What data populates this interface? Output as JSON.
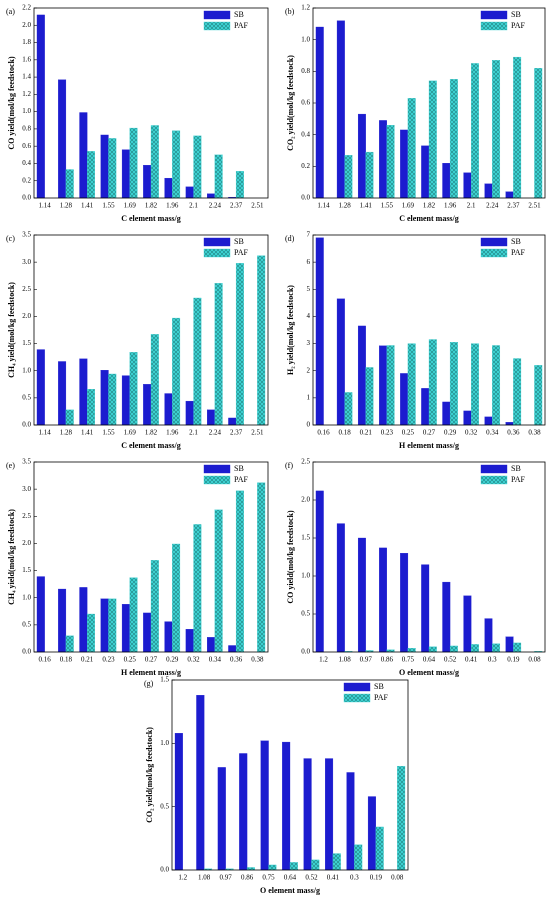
{
  "chart_data": [
    {
      "type": "bar",
      "panel_label": "(a)",
      "categories": [
        "1.14",
        "1.28",
        "1.41",
        "1.55",
        "1.69",
        "1.82",
        "1.96",
        "2.1",
        "2.24",
        "2.37",
        "2.51"
      ],
      "series": [
        {
          "name": "SB",
          "color": "#1c1ccf",
          "values": [
            2.12,
            1.37,
            0.99,
            0.73,
            0.56,
            0.38,
            0.23,
            0.13,
            0.05,
            0.01,
            null
          ]
        },
        {
          "name": "PAF",
          "color": "#3ccfcf",
          "values": [
            null,
            0.33,
            0.54,
            0.69,
            0.81,
            0.84,
            0.78,
            0.72,
            0.5,
            0.31,
            null
          ]
        }
      ],
      "ylim": [
        0,
        2.2
      ],
      "yticks": [
        {
          "value": 0,
          "label": "0.0"
        },
        {
          "value": 0.2,
          "label": "0.2"
        },
        {
          "value": 0.4,
          "label": "0.4"
        },
        {
          "value": 0.6,
          "label": "0.6"
        },
        {
          "value": 0.8,
          "label": "0.8"
        },
        {
          "value": 1,
          "label": "1.0"
        },
        {
          "value": 1.2,
          "label": "1.2"
        },
        {
          "value": 1.4,
          "label": "1.4"
        },
        {
          "value": 1.6,
          "label": "1.6"
        },
        {
          "value": 1.8,
          "label": "1.8"
        },
        {
          "value": 2,
          "label": "2.0"
        },
        {
          "value": 2.2,
          "label": "2.2"
        }
      ],
      "xlabel": "C element mass/g",
      "ylabel": "CO yield(mol/kg feedstock)"
    },
    {
      "type": "bar",
      "panel_label": "(b)",
      "categories": [
        "1.14",
        "1.28",
        "1.41",
        "1.55",
        "1.69",
        "1.82",
        "1.96",
        "2.1",
        "2.24",
        "2.37",
        "2.51"
      ],
      "series": [
        {
          "name": "SB",
          "color": "#1c1ccf",
          "values": [
            1.08,
            1.12,
            0.53,
            0.49,
            0.43,
            0.33,
            0.22,
            0.16,
            0.09,
            0.04,
            null
          ]
        },
        {
          "name": "PAF",
          "color": "#3ccfcf",
          "values": [
            null,
            0.27,
            0.29,
            0.46,
            0.63,
            0.74,
            0.75,
            0.85,
            0.87,
            0.89,
            0.82
          ]
        }
      ],
      "ylim": [
        0,
        1.2
      ],
      "yticks": [
        {
          "value": 0,
          "label": "0.0"
        },
        {
          "value": 0.2,
          "label": "0.2"
        },
        {
          "value": 0.4,
          "label": "0.4"
        },
        {
          "value": 0.6,
          "label": "0.6"
        },
        {
          "value": 0.8,
          "label": "0.8"
        },
        {
          "value": 1,
          "label": "1.0"
        },
        {
          "value": 1.2,
          "label": "1.2"
        }
      ],
      "xlabel": "C element mass/g",
      "ylabel": "CO₂ yield(mol/kg feedstock)"
    },
    {
      "type": "bar",
      "panel_label": "(c)",
      "categories": [
        "1.14",
        "1.28",
        "1.41",
        "1.55",
        "1.69",
        "1.82",
        "1.96",
        "2.1",
        "2.24",
        "2.37",
        "2.51"
      ],
      "series": [
        {
          "name": "SB",
          "color": "#1c1ccf",
          "values": [
            1.39,
            1.17,
            1.22,
            1.01,
            0.91,
            0.75,
            0.58,
            0.44,
            0.28,
            0.13,
            null
          ]
        },
        {
          "name": "PAF",
          "color": "#3ccfcf",
          "values": [
            null,
            0.28,
            0.66,
            0.94,
            1.34,
            1.67,
            1.97,
            2.34,
            2.61,
            2.98,
            3.12
          ]
        }
      ],
      "ylim": [
        0,
        3.5
      ],
      "yticks": [
        {
          "value": 0,
          "label": "0.0"
        },
        {
          "value": 0.5,
          "label": "0.5"
        },
        {
          "value": 1,
          "label": "1.0"
        },
        {
          "value": 1.5,
          "label": "1.5"
        },
        {
          "value": 2,
          "label": "2.0"
        },
        {
          "value": 2.5,
          "label": "2.5"
        },
        {
          "value": 3,
          "label": "3.0"
        },
        {
          "value": 3.5,
          "label": "3.5"
        }
      ],
      "xlabel": "C element mass/g",
      "ylabel": "CH₄ yield(mol/kg feedstock)"
    },
    {
      "type": "bar",
      "panel_label": "(d)",
      "categories": [
        "0.16",
        "0.18",
        "0.21",
        "0.23",
        "0.25",
        "0.27",
        "0.29",
        "0.32",
        "0.34",
        "0.36",
        "0.38"
      ],
      "series": [
        {
          "name": "SB",
          "color": "#1c1ccf",
          "values": [
            6.9,
            4.65,
            3.65,
            2.92,
            1.9,
            1.35,
            0.85,
            0.52,
            0.3,
            0.1,
            null
          ]
        },
        {
          "name": "PAF",
          "color": "#3ccfcf",
          "values": [
            null,
            1.2,
            2.12,
            2.93,
            3.0,
            3.15,
            3.05,
            3.0,
            2.93,
            2.45,
            2.2
          ]
        }
      ],
      "ylim": [
        0,
        7
      ],
      "yticks": [
        0,
        1,
        2,
        3,
        4,
        5,
        6,
        7
      ],
      "xlabel": "H element mass/g",
      "ylabel": "H₂ yield(mol/kg feedstock)"
    },
    {
      "type": "bar",
      "panel_label": "(e)",
      "categories": [
        "0.16",
        "0.18",
        "0.21",
        "0.23",
        "0.25",
        "0.27",
        "0.29",
        "0.32",
        "0.34",
        "0.36",
        "0.38"
      ],
      "series": [
        {
          "name": "SB",
          "color": "#1c1ccf",
          "values": [
            1.39,
            1.16,
            1.19,
            0.98,
            0.88,
            0.72,
            0.56,
            0.42,
            0.27,
            0.12,
            null
          ]
        },
        {
          "name": "PAF",
          "color": "#3ccfcf",
          "values": [
            null,
            0.3,
            0.7,
            0.98,
            1.37,
            1.69,
            1.99,
            2.35,
            2.62,
            2.97,
            3.12
          ]
        }
      ],
      "ylim": [
        0,
        3.5
      ],
      "yticks": [
        {
          "value": 0,
          "label": "0.0"
        },
        {
          "value": 0.5,
          "label": "0.5"
        },
        {
          "value": 1,
          "label": "1.0"
        },
        {
          "value": 1.5,
          "label": "1.5"
        },
        {
          "value": 2,
          "label": "2.0"
        },
        {
          "value": 2.5,
          "label": "2.5"
        },
        {
          "value": 3,
          "label": "3.0"
        },
        {
          "value": 3.5,
          "label": "3.5"
        }
      ],
      "xlabel": "H element mass/g",
      "ylabel": "CH₄ yield(mol/kg feedstock)"
    },
    {
      "type": "bar",
      "panel_label": "(f)",
      "categories": [
        "1.2",
        "1.08",
        "0.97",
        "0.86",
        "0.75",
        "0.64",
        "0.52",
        "0.41",
        "0.3",
        "0.19",
        "0.08"
      ],
      "series": [
        {
          "name": "SB",
          "color": "#1c1ccf",
          "values": [
            2.12,
            1.69,
            1.5,
            1.37,
            1.3,
            1.15,
            0.92,
            0.74,
            0.44,
            0.2,
            null
          ]
        },
        {
          "name": "PAF",
          "color": "#3ccfcf",
          "values": [
            null,
            0.01,
            0.02,
            0.03,
            0.05,
            0.07,
            0.08,
            0.1,
            0.11,
            0.12,
            0.01
          ]
        }
      ],
      "ylim": [
        0,
        2.5
      ],
      "yticks": [
        {
          "value": 0,
          "label": "0.0"
        },
        {
          "value": 0.5,
          "label": "0.5"
        },
        {
          "value": 1,
          "label": "1.0"
        },
        {
          "value": 1.5,
          "label": "1.5"
        },
        {
          "value": 2,
          "label": "2.0"
        },
        {
          "value": 2.5,
          "label": "2.5"
        }
      ],
      "xlabel": "O element mass/g",
      "ylabel": "CO yield(mol/kg feedstock)"
    },
    {
      "type": "bar",
      "panel_label": "(g)",
      "categories": [
        "1.2",
        "1.08",
        "0.97",
        "0.86",
        "0.75",
        "0.64",
        "0.52",
        "0.41",
        "0.3",
        "0.19",
        "0.08"
      ],
      "series": [
        {
          "name": "SB",
          "color": "#1c1ccf",
          "values": [
            1.08,
            1.38,
            0.81,
            0.92,
            1.02,
            1.01,
            0.88,
            0.88,
            0.77,
            0.58,
            null
          ]
        },
        {
          "name": "PAF",
          "color": "#3ccfcf",
          "values": [
            null,
            0.01,
            0.01,
            0.02,
            0.04,
            0.06,
            0.08,
            0.13,
            0.2,
            0.34,
            0.82
          ]
        }
      ],
      "ylim": [
        0,
        1.5
      ],
      "yticks": [
        {
          "value": 0,
          "label": "0.0"
        },
        {
          "value": 0.5,
          "label": "0.5"
        },
        {
          "value": 1,
          "label": "1.0"
        },
        {
          "value": 1.5,
          "label": "1.5"
        }
      ],
      "xlabel": "O element mass/g",
      "ylabel": "CO₂ yield(mol/kg feedstock)"
    }
  ]
}
